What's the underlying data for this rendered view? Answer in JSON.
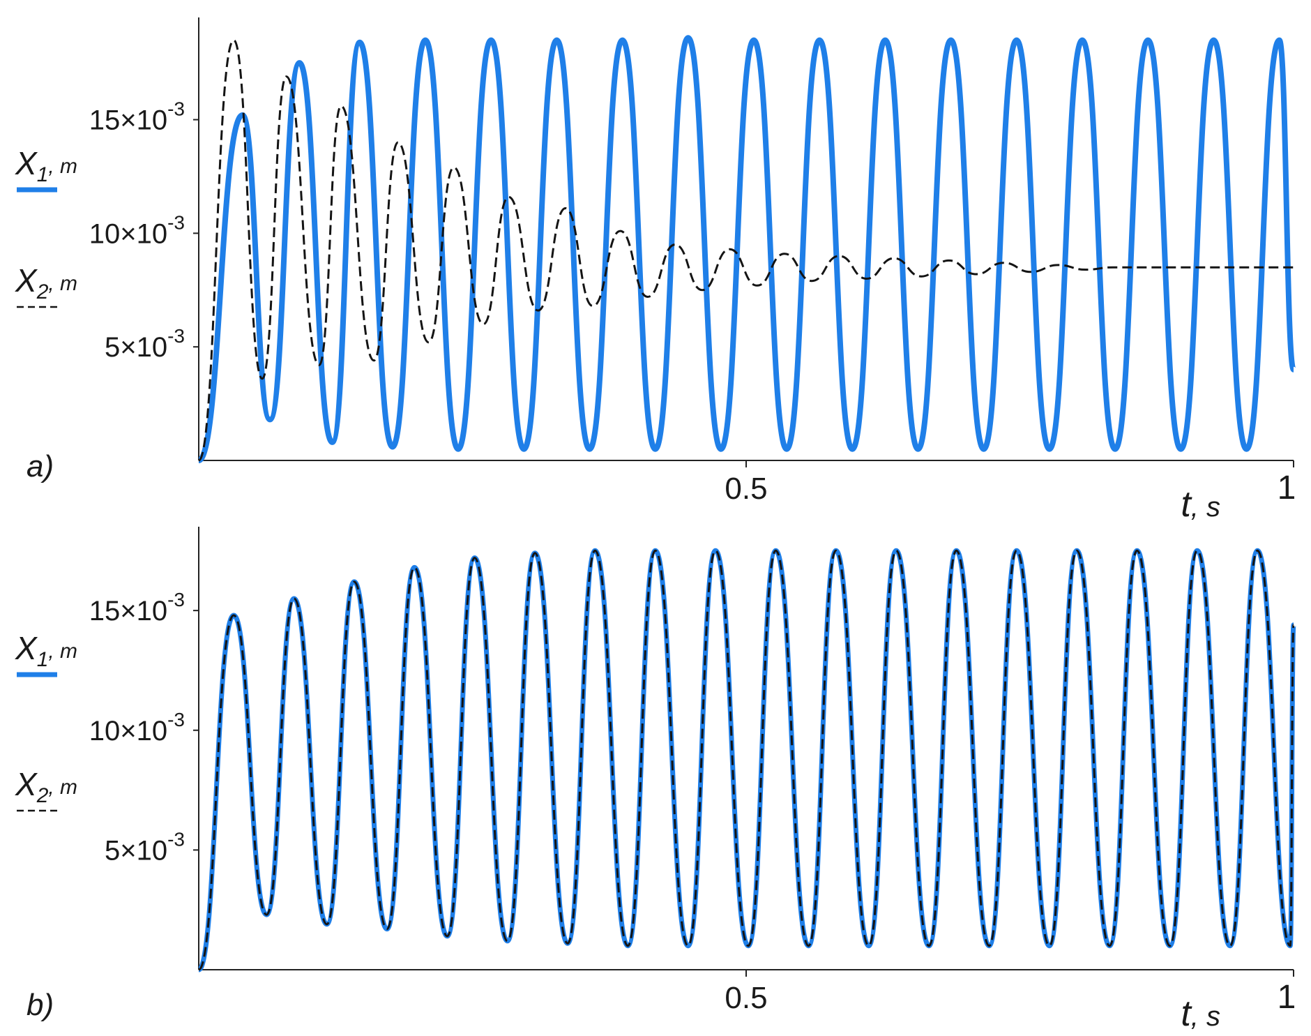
{
  "colors": {
    "series1": "#1f7fe8",
    "series2": "#141414",
    "axis": "#222222"
  },
  "chart_data": [
    {
      "type": "line",
      "panel_label": "a)",
      "xlabel": {
        "main": "t",
        "unit": ", s"
      },
      "xlim": [
        0,
        1
      ],
      "ylim": [
        0,
        0.0195
      ],
      "x_ticks": [
        0.5,
        1
      ],
      "x_tick_labels": [
        "0.5",
        "1"
      ],
      "y_ticks": [
        0.005,
        0.01,
        0.015
      ],
      "y_tick_labels": [
        {
          "base": "5×10",
          "exp": "-3"
        },
        {
          "base": "10×10",
          "exp": "-3"
        },
        {
          "base": "15×10",
          "exp": "-3"
        }
      ],
      "legend": [
        {
          "symbol": "X",
          "sub": "1",
          "unit": ", m",
          "style": "solid"
        },
        {
          "symbol": "X",
          "sub": "2",
          "unit": ", m",
          "style": "dashed"
        }
      ],
      "series": [
        {
          "style": "solid",
          "description": "X1 (blue, solid): grows to a steady oscillation around ~9.8e-3 m",
          "points": [
            [
              0,
              0
            ],
            [
              0.04,
              0.0152
            ],
            [
              0.065,
              0.0018
            ],
            [
              0.092,
              0.0175
            ],
            [
              0.122,
              0.0008
            ],
            [
              0.147,
              0.0184
            ],
            [
              0.177,
              0.0006
            ],
            [
              0.207,
              0.0185
            ],
            [
              0.237,
              0.0005
            ],
            [
              0.267,
              0.0185
            ],
            [
              0.297,
              0.0005
            ],
            [
              0.327,
              0.0185
            ],
            [
              0.357,
              0.0005
            ],
            [
              0.387,
              0.0185
            ],
            [
              0.417,
              0.0005
            ],
            [
              0.447,
              0.0186
            ],
            [
              0.477,
              0.0005
            ],
            [
              0.507,
              0.0185
            ],
            [
              0.537,
              0.0005
            ],
            [
              0.567,
              0.0185
            ],
            [
              0.597,
              0.0005
            ],
            [
              0.627,
              0.0185
            ],
            [
              0.657,
              0.0005
            ],
            [
              0.687,
              0.0185
            ],
            [
              0.717,
              0.0005
            ],
            [
              0.747,
              0.0185
            ],
            [
              0.777,
              0.0005
            ],
            [
              0.807,
              0.0185
            ],
            [
              0.837,
              0.0005
            ],
            [
              0.867,
              0.0185
            ],
            [
              0.897,
              0.0005
            ],
            [
              0.927,
              0.0185
            ],
            [
              0.957,
              0.0005
            ],
            [
              0.987,
              0.0185
            ],
            [
              1.0,
              0.004
            ]
          ]
        },
        {
          "style": "dashed",
          "description": "X2 (black, dashed): damped oscillation settling near 8.5e-3 m",
          "points": [
            [
              0,
              0
            ],
            [
              0.032,
              0.0185
            ],
            [
              0.058,
              0.0036
            ],
            [
              0.08,
              0.0169
            ],
            [
              0.11,
              0.0042
            ],
            [
              0.13,
              0.0156
            ],
            [
              0.16,
              0.0044
            ],
            [
              0.182,
              0.014
            ],
            [
              0.21,
              0.0052
            ],
            [
              0.233,
              0.0129
            ],
            [
              0.26,
              0.006
            ],
            [
              0.283,
              0.0116
            ],
            [
              0.31,
              0.0066
            ],
            [
              0.335,
              0.0111
            ],
            [
              0.36,
              0.0068
            ],
            [
              0.385,
              0.0101
            ],
            [
              0.41,
              0.0072
            ],
            [
              0.435,
              0.0095
            ],
            [
              0.46,
              0.0075
            ],
            [
              0.485,
              0.0093
            ],
            [
              0.51,
              0.0077
            ],
            [
              0.535,
              0.0091
            ],
            [
              0.56,
              0.0079
            ],
            [
              0.585,
              0.009
            ],
            [
              0.61,
              0.008
            ],
            [
              0.635,
              0.0089
            ],
            [
              0.66,
              0.0081
            ],
            [
              0.685,
              0.0088
            ],
            [
              0.71,
              0.0082
            ],
            [
              0.735,
              0.0087
            ],
            [
              0.76,
              0.0083
            ],
            [
              0.785,
              0.0086
            ],
            [
              0.81,
              0.0084
            ],
            [
              0.835,
              0.0085
            ],
            [
              0.86,
              0.0085
            ],
            [
              1.0,
              0.0085
            ]
          ]
        }
      ]
    },
    {
      "type": "line",
      "panel_label": "b)",
      "xlabel": {
        "main": "t",
        "unit": ", s"
      },
      "xlim": [
        0,
        1
      ],
      "ylim": [
        0,
        0.0185
      ],
      "x_ticks": [
        0.5,
        1
      ],
      "x_tick_labels": [
        "0.5",
        "1"
      ],
      "y_ticks": [
        0.005,
        0.01,
        0.015
      ],
      "y_tick_labels": [
        {
          "base": "5×10",
          "exp": "-3"
        },
        {
          "base": "10×10",
          "exp": "-3"
        },
        {
          "base": "15×10",
          "exp": "-3"
        }
      ],
      "legend": [
        {
          "symbol": "X",
          "sub": "1",
          "unit": ", m",
          "style": "solid"
        },
        {
          "symbol": "X",
          "sub": "2",
          "unit": ", m",
          "style": "dashed"
        }
      ],
      "series": [
        {
          "style": "solid",
          "description": "X1 (blue, solid): growing oscillation, overlapping X2",
          "points": [
            [
              0,
              0
            ],
            [
              0.032,
              0.0148
            ],
            [
              0.062,
              0.0023
            ],
            [
              0.087,
              0.0155
            ],
            [
              0.117,
              0.0019
            ],
            [
              0.142,
              0.0162
            ],
            [
              0.172,
              0.0017
            ],
            [
              0.197,
              0.0168
            ],
            [
              0.227,
              0.0014
            ],
            [
              0.252,
              0.0172
            ],
            [
              0.282,
              0.0012
            ],
            [
              0.307,
              0.0174
            ],
            [
              0.337,
              0.0011
            ],
            [
              0.362,
              0.0175
            ],
            [
              0.392,
              0.001
            ],
            [
              0.417,
              0.0175
            ],
            [
              0.447,
              0.001
            ],
            [
              0.472,
              0.0175
            ],
            [
              0.502,
              0.001
            ],
            [
              0.527,
              0.0175
            ],
            [
              0.557,
              0.001
            ],
            [
              0.582,
              0.0175
            ],
            [
              0.612,
              0.001
            ],
            [
              0.637,
              0.0175
            ],
            [
              0.667,
              0.001
            ],
            [
              0.692,
              0.0175
            ],
            [
              0.722,
              0.001
            ],
            [
              0.747,
              0.0175
            ],
            [
              0.777,
              0.001
            ],
            [
              0.802,
              0.0175
            ],
            [
              0.832,
              0.001
            ],
            [
              0.857,
              0.0175
            ],
            [
              0.887,
              0.001
            ],
            [
              0.912,
              0.0175
            ],
            [
              0.942,
              0.001
            ],
            [
              0.967,
              0.0175
            ],
            [
              0.997,
              0.001
            ],
            [
              1.0,
              0.0144
            ]
          ]
        },
        {
          "style": "dashed",
          "description": "X2 (black, dashed): coincides with X1",
          "points": [
            [
              0,
              0
            ],
            [
              0.032,
              0.0148
            ],
            [
              0.062,
              0.0023
            ],
            [
              0.087,
              0.0155
            ],
            [
              0.117,
              0.0019
            ],
            [
              0.142,
              0.0162
            ],
            [
              0.172,
              0.0017
            ],
            [
              0.197,
              0.0168
            ],
            [
              0.227,
              0.0014
            ],
            [
              0.252,
              0.0172
            ],
            [
              0.282,
              0.0012
            ],
            [
              0.307,
              0.0174
            ],
            [
              0.337,
              0.0011
            ],
            [
              0.362,
              0.0175
            ],
            [
              0.392,
              0.001
            ],
            [
              0.417,
              0.0175
            ],
            [
              0.447,
              0.001
            ],
            [
              0.472,
              0.0175
            ],
            [
              0.502,
              0.001
            ],
            [
              0.527,
              0.0175
            ],
            [
              0.557,
              0.001
            ],
            [
              0.582,
              0.0175
            ],
            [
              0.612,
              0.001
            ],
            [
              0.637,
              0.0175
            ],
            [
              0.667,
              0.001
            ],
            [
              0.692,
              0.0175
            ],
            [
              0.722,
              0.001
            ],
            [
              0.747,
              0.0175
            ],
            [
              0.777,
              0.001
            ],
            [
              0.802,
              0.0175
            ],
            [
              0.832,
              0.001
            ],
            [
              0.857,
              0.0175
            ],
            [
              0.887,
              0.001
            ],
            [
              0.912,
              0.0175
            ],
            [
              0.942,
              0.001
            ],
            [
              0.967,
              0.0175
            ],
            [
              0.997,
              0.001
            ],
            [
              1.0,
              0.0144
            ]
          ]
        }
      ]
    }
  ]
}
